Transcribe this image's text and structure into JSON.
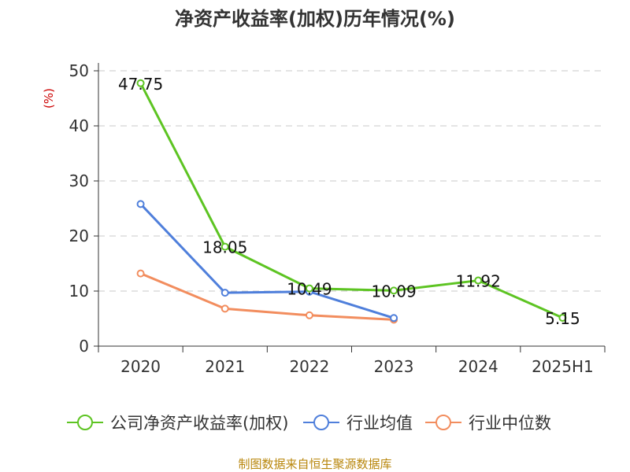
{
  "chart_data": {
    "type": "line",
    "title": "净资产收益率(加权)历年情况(%)",
    "ylabel": "(%)",
    "categories": [
      "2020",
      "2021",
      "2022",
      "2023",
      "2024",
      "2025H1"
    ],
    "ylim": [
      0,
      50
    ],
    "yticks": [
      0,
      10,
      20,
      30,
      40,
      50
    ],
    "grid": true,
    "legend_position": "bottom",
    "series": [
      {
        "name": "公司净资产收益率(加权)",
        "color": "#5dc422",
        "values": [
          47.75,
          18.05,
          10.49,
          10.09,
          11.92,
          5.15
        ],
        "labels": [
          "47.75",
          "18.05",
          "10.49",
          "10.09",
          "11.92",
          "5.15"
        ]
      },
      {
        "name": "行业均值",
        "color": "#4f7fdb",
        "values": [
          25.8,
          9.7,
          9.9,
          5.1,
          null,
          null
        ]
      },
      {
        "name": "行业中位数",
        "color": "#f28d5e",
        "values": [
          13.2,
          6.8,
          5.6,
          4.8,
          null,
          null
        ]
      }
    ]
  },
  "footer": {
    "source": "制图数据来自恒生聚源数据库"
  }
}
